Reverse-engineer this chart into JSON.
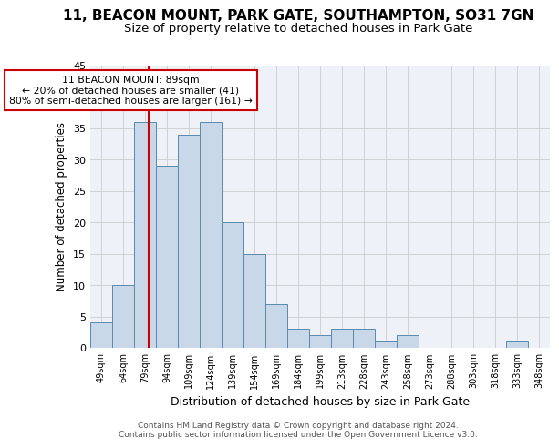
{
  "title1": "11, BEACON MOUNT, PARK GATE, SOUTHAMPTON, SO31 7GN",
  "title2": "Size of property relative to detached houses in Park Gate",
  "xlabel": "Distribution of detached houses by size in Park Gate",
  "ylabel": "Number of detached properties",
  "bin_labels": [
    "49sqm",
    "64sqm",
    "79sqm",
    "94sqm",
    "109sqm",
    "124sqm",
    "139sqm",
    "154sqm",
    "169sqm",
    "184sqm",
    "199sqm",
    "213sqm",
    "228sqm",
    "243sqm",
    "258sqm",
    "273sqm",
    "288sqm",
    "303sqm",
    "318sqm",
    "333sqm",
    "348sqm"
  ],
  "bar_heights": [
    4,
    10,
    36,
    29,
    34,
    36,
    20,
    15,
    7,
    3,
    2,
    3,
    3,
    1,
    2,
    0,
    0,
    0,
    0,
    1,
    0
  ],
  "bar_color": "#c8d8e8",
  "bar_edge_color": "#5a8ab0",
  "vline_color": "#cc0000",
  "annotation_text": "11 BEACON MOUNT: 89sqm\n← 20% of detached houses are smaller (41)\n80% of semi-detached houses are larger (161) →",
  "annotation_box_color": "#ffffff",
  "annotation_box_edge_color": "#cc0000",
  "ylim": [
    0,
    45
  ],
  "yticks": [
    0,
    5,
    10,
    15,
    20,
    25,
    30,
    35,
    40,
    45
  ],
  "grid_color": "#cccccc",
  "bg_color": "#eef2f8",
  "footer_text": "Contains HM Land Registry data © Crown copyright and database right 2024.\nContains public sector information licensed under the Open Government Licence v3.0.",
  "title1_fontsize": 11,
  "title2_fontsize": 9.5,
  "xlabel_fontsize": 9,
  "ylabel_fontsize": 8.5,
  "footer_fontsize": 6.5
}
